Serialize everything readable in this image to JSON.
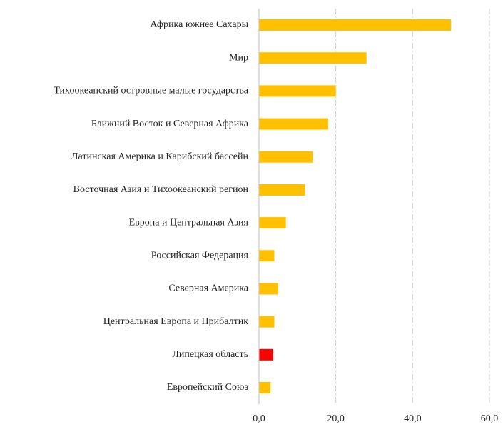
{
  "chart_data": {
    "type": "barh",
    "categories": [
      "Африка южнее Сахары",
      "Мир",
      "Тихоокеанский островные малые государства",
      "Ближний Восток и Северная Африка",
      "Латинская Америка и Карибский бассейн",
      "Восточная Азия и Тихоокеанский регион",
      "Европа и Центральная Азия",
      "Российская Федерация",
      "Северная Америка",
      "Центральная Европа и Прибалтик",
      "Липецкая область",
      "Европейский Союз"
    ],
    "values": [
      50,
      28,
      20,
      18,
      14,
      12,
      7,
      4,
      5,
      4,
      3.7,
      3
    ],
    "colors": [
      "#ffc000",
      "#ffc000",
      "#ffc000",
      "#ffc000",
      "#ffc000",
      "#ffc000",
      "#ffc000",
      "#ffc000",
      "#ffc000",
      "#ffc000",
      "#ff0000",
      "#ffc000"
    ],
    "xlim": [
      0,
      60
    ],
    "xticks": [
      {
        "value": 0,
        "label": "0,0"
      },
      {
        "value": 20,
        "label": "20,0"
      },
      {
        "value": 40,
        "label": "40,0"
      },
      {
        "value": 60,
        "label": "60,0"
      }
    ],
    "grid": true
  }
}
